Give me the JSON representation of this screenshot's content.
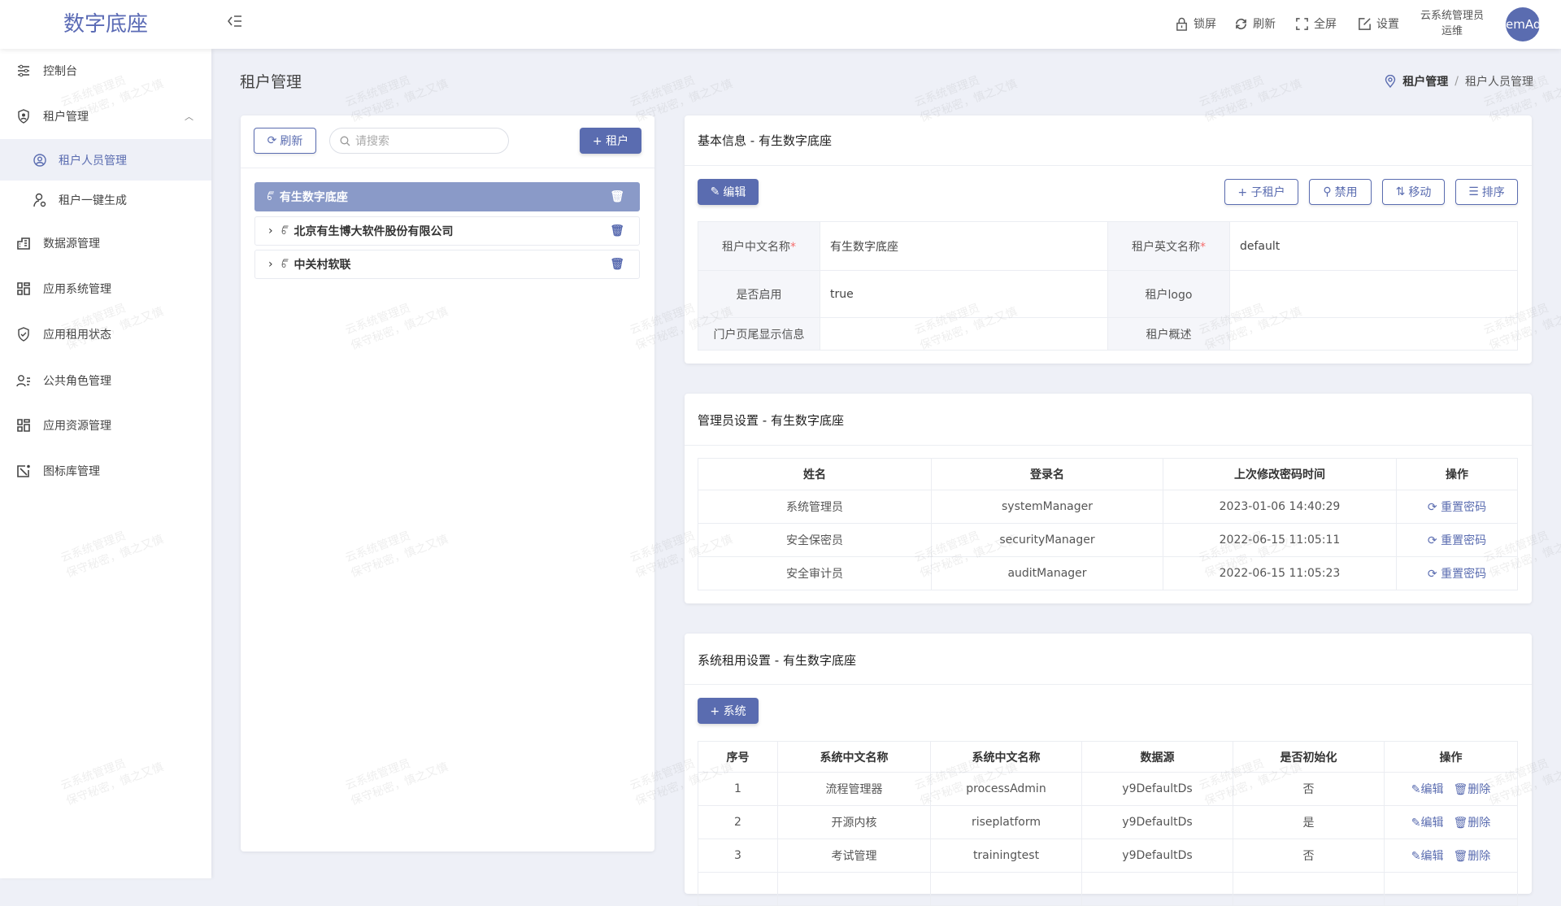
{
  "app": {
    "logo": "数字底座"
  },
  "header": {
    "lock": "锁屏",
    "refresh": "刷新",
    "fullscreen": "全屏",
    "settings": "设置",
    "user_line1": "云系统管理员",
    "user_line2": "运维",
    "avatar": "emAd"
  },
  "sidebar": {
    "items": [
      {
        "label": "控制台",
        "icon": "sliders-icon"
      },
      {
        "label": "租户管理",
        "icon": "shield-user-icon",
        "expanded": true
      },
      {
        "label": "租户人员管理",
        "icon": "user-circle-icon",
        "active": true
      },
      {
        "label": "租户一键生成",
        "icon": "user-gear-icon"
      },
      {
        "label": "数据源管理",
        "icon": "building-icon"
      },
      {
        "label": "应用系统管理",
        "icon": "grid-icon"
      },
      {
        "label": "应用租用状态",
        "icon": "shield-check-icon"
      },
      {
        "label": "公共角色管理",
        "icon": "user-list-icon"
      },
      {
        "label": "应用资源管理",
        "icon": "grid-icon"
      },
      {
        "label": "图标库管理",
        "icon": "image-edit-icon"
      }
    ]
  },
  "page": {
    "title": "租户管理",
    "breadcrumb": [
      "租户管理",
      "租户人员管理"
    ],
    "breadcrumb_sep": "/"
  },
  "tree": {
    "refresh": "刷新",
    "search_placeholder": "请搜索",
    "add": "+ 租户",
    "items": [
      {
        "label": "有生数字底座",
        "selected": true
      },
      {
        "label": "北京有生博大软件股份有限公司"
      },
      {
        "label": "中关村软联"
      }
    ]
  },
  "basic": {
    "title": "基本信息 - 有生数字底座",
    "edit": "编辑",
    "add_child": "+ 子租户",
    "disable": "禁用",
    "move": "移动",
    "sort": "排序",
    "fields": {
      "cn_name_label": "租户中文名称",
      "cn_name": "有生数字底座",
      "en_name_label": "租户英文名称",
      "en_name": "default",
      "enabled_label": "是否启用",
      "enabled": "true",
      "logo_label": "租户logo",
      "footer_label": "门户页尾显示信息",
      "desc_label": "租户概述",
      "required_mark": "*"
    }
  },
  "admins": {
    "title": "管理员设置 - 有生数字底座",
    "columns": [
      "姓名",
      "登录名",
      "上次修改密码时间",
      "操作"
    ],
    "action": "重置密码",
    "rows": [
      [
        "系统管理员",
        "systemManager",
        "2023-01-06 14:40:29"
      ],
      [
        "安全保密员",
        "securityManager",
        "2022-06-15 11:05:11"
      ],
      [
        "安全审计员",
        "auditManager",
        "2022-06-15 11:05:23"
      ]
    ]
  },
  "systems": {
    "title": "系统租用设置 - 有生数字底座",
    "add": "+ 系统",
    "columns": [
      "序号",
      "系统中文名称",
      "系统中文名称",
      "数据源",
      "是否初始化",
      "操作"
    ],
    "edit": "编辑",
    "delete": "删除",
    "rows": [
      [
        "1",
        "流程管理器",
        "processAdmin",
        "y9DefaultDs",
        "否"
      ],
      [
        "2",
        "开源内核",
        "riseplatform",
        "y9DefaultDs",
        "是"
      ],
      [
        "3",
        "考试管理",
        "trainingtest",
        "y9DefaultDs",
        "否"
      ]
    ]
  },
  "watermark": {
    "line1": "云系统管理员",
    "line2": "保守秘密，慎之又慎"
  },
  "colors": {
    "primary": "#5a6cb0",
    "selected": "#8a9ac8",
    "background": "#eef0f7"
  }
}
